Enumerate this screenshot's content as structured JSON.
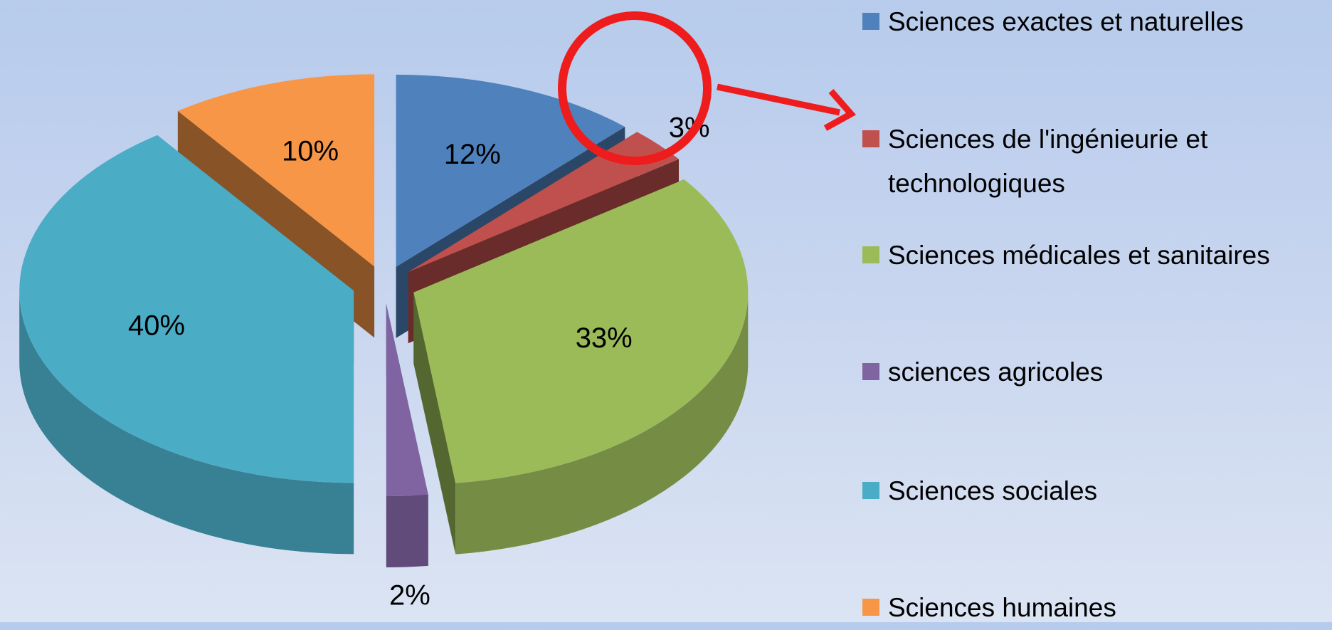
{
  "chart_data": {
    "type": "pie",
    "categories": [
      "Sciences exactes et naturelles",
      "Sciences de l'ingénieurie et technologiques",
      "Sciences médicales et sanitaires",
      "sciences agricoles",
      "Sciences sociales",
      "Sciences humaines"
    ],
    "values": [
      12,
      3,
      33,
      2,
      40,
      10
    ],
    "value_labels": [
      "12%",
      "3%",
      "33%",
      "2%",
      "40%",
      "10%"
    ],
    "colors": [
      "#4f81bd",
      "#c0504d",
      "#9bbb59",
      "#8064a2",
      "#4bacc6",
      "#f79646"
    ]
  }
}
